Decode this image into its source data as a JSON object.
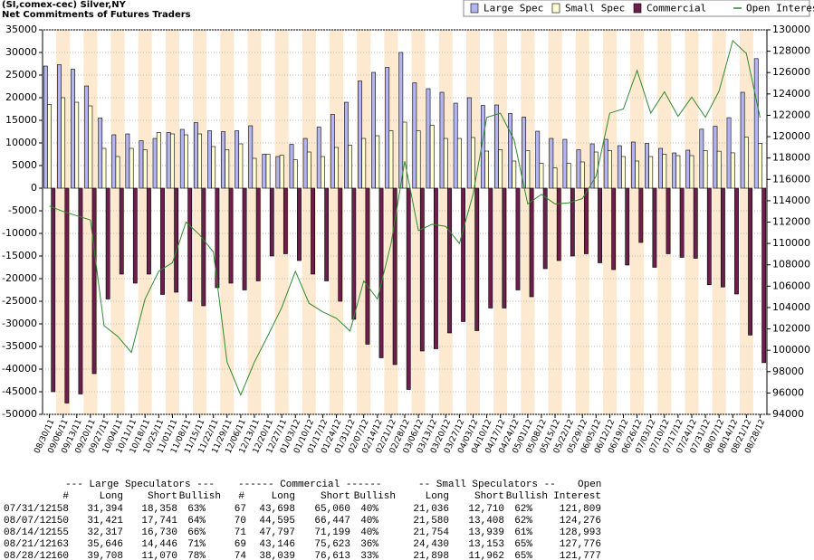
{
  "chart_data": {
    "type": "bar",
    "title": "(SI,comex-cec) Silver,NY",
    "subtitle": "Net Commitments of Futures Traders",
    "categories": [
      "08/30/11",
      "09/06/11",
      "09/13/11",
      "09/20/11",
      "09/27/11",
      "10/04/11",
      "10/11/11",
      "10/18/11",
      "10/25/11",
      "11/01/11",
      "11/08/11",
      "11/15/11",
      "11/22/11",
      "11/29/11",
      "12/06/11",
      "12/13/11",
      "12/20/11",
      "12/27/11",
      "01/03/12",
      "01/10/12",
      "01/17/12",
      "01/24/12",
      "01/31/12",
      "02/07/12",
      "02/14/12",
      "02/21/12",
      "02/28/12",
      "03/06/12",
      "03/13/12",
      "03/20/12",
      "03/27/12",
      "04/03/12",
      "04/10/12",
      "04/17/12",
      "04/24/12",
      "05/01/12",
      "05/08/12",
      "05/15/12",
      "05/22/12",
      "05/29/12",
      "06/05/12",
      "06/12/12",
      "06/19/12",
      "06/26/12",
      "07/03/12",
      "07/10/12",
      "07/17/12",
      "07/24/12",
      "07/31/12",
      "08/07/12",
      "08/14/12",
      "08/21/12",
      "08/28/12"
    ],
    "series": [
      {
        "name": "Large Spec",
        "color": "#b4b4f0",
        "values": [
          27000,
          27300,
          26300,
          22600,
          15500,
          11800,
          12000,
          10500,
          11000,
          12300,
          13000,
          14500,
          12700,
          12500,
          12700,
          13800,
          7500,
          7000,
          9700,
          11000,
          13500,
          16300,
          19000,
          23700,
          25600,
          26700,
          30000,
          23300,
          22000,
          21200,
          18800,
          20000,
          18300,
          18400,
          16500,
          15700,
          12600,
          11000,
          10800,
          8500,
          9800,
          10800,
          9400,
          10200,
          9900,
          8800,
          7800,
          8400,
          13036,
          13680,
          15587,
          21200,
          28638
        ]
      },
      {
        "name": "Small Spec",
        "color": "#ffffd2",
        "values": [
          18500,
          20000,
          19000,
          18200,
          8800,
          7000,
          8800,
          8500,
          12300,
          12000,
          11800,
          12000,
          9200,
          8500,
          9800,
          6600,
          7500,
          7300,
          6300,
          8000,
          7000,
          9000,
          9500,
          11000,
          11600,
          12700,
          14600,
          12700,
          13900,
          11000,
          11000,
          11200,
          8200,
          8500,
          6000,
          8300,
          5500,
          4500,
          5500,
          5800,
          8000,
          8300,
          7000,
          6000,
          7000,
          7500,
          7200,
          7200,
          8326,
          8172,
          7815,
          11277,
          9936
        ]
      },
      {
        "name": "Commercial",
        "color": "#6b1f4a",
        "values": [
          -45000,
          -47500,
          -45500,
          -41000,
          -24500,
          -19000,
          -21000,
          -19000,
          -23500,
          -23000,
          -25000,
          -26000,
          -22000,
          -21000,
          -22500,
          -20500,
          -15000,
          -14500,
          -16000,
          -19000,
          -20500,
          -25000,
          -29000,
          -34500,
          -37500,
          -39000,
          -44500,
          -36000,
          -35500,
          -32000,
          -29500,
          -31500,
          -26500,
          -26500,
          -22500,
          -24000,
          -17800,
          -16000,
          -15000,
          -14500,
          -16500,
          -18000,
          -17000,
          -12000,
          -17500,
          -14500,
          -15300,
          -15500,
          -21362,
          -21852,
          -23402,
          -32477,
          -38574
        ]
      },
      {
        "name": "Open Interest",
        "color": "#2e8b2e",
        "type": "line",
        "axis": "y2",
        "values": [
          113500,
          113000,
          112600,
          112200,
          102300,
          101300,
          99800,
          104800,
          107400,
          108200,
          112000,
          110800,
          109200,
          98900,
          95800,
          98900,
          101400,
          104000,
          107400,
          104400,
          103600,
          103000,
          101800,
          106500,
          104800,
          110000,
          117700,
          111200,
          111800,
          111600,
          110000,
          114600,
          121800,
          122200,
          119700,
          113700,
          114600,
          113700,
          113800,
          114200,
          116300,
          122200,
          122600,
          126200,
          122200,
          124200,
          121900,
          123700,
          121809,
          124276,
          128993,
          127776,
          121777
        ]
      }
    ],
    "ylim": [
      -50000,
      35000
    ],
    "yticks": [
      35000,
      30000,
      25000,
      20000,
      15000,
      10000,
      5000,
      0,
      -5000,
      -10000,
      -15000,
      -20000,
      -25000,
      -30000,
      -35000,
      -40000,
      -45000,
      -50000
    ],
    "y2lim": [
      94000,
      130000
    ],
    "y2ticks": [
      130000,
      128000,
      126000,
      124000,
      122000,
      120000,
      118000,
      116000,
      114000,
      112000,
      110000,
      108000,
      106000,
      104000,
      102000,
      100000,
      98000,
      96000,
      94000
    ],
    "legend": "top-right"
  },
  "table": {
    "group_headers": [
      "--- Large Speculators ---",
      "------ Commercial ------",
      "-- Small Speculators --",
      "Open"
    ],
    "columns": [
      "#",
      "Long",
      "Short",
      "Bullish",
      "#",
      "Long",
      "Short",
      "Bullish",
      "Long",
      "Short",
      "Bullish",
      "Interest"
    ],
    "rows": [
      [
        "07/31/12",
        "158",
        "31,394",
        "18,358",
        "63%",
        "67",
        "43,698",
        "65,060",
        "40%",
        "21,036",
        "12,710",
        "62%",
        "121,809"
      ],
      [
        "08/07/12",
        "150",
        "31,421",
        "17,741",
        "64%",
        "70",
        "44,595",
        "66,447",
        "40%",
        "21,580",
        "13,408",
        "62%",
        "124,276"
      ],
      [
        "08/14/12",
        "155",
        "32,317",
        "16,730",
        "66%",
        "71",
        "47,797",
        "71,199",
        "40%",
        "21,754",
        "13,939",
        "61%",
        "128,993"
      ],
      [
        "08/21/12",
        "163",
        "35,646",
        "14,446",
        "71%",
        "69",
        "43,146",
        "75,623",
        "36%",
        "24,430",
        "13,153",
        "65%",
        "127,776"
      ],
      [
        "08/28/12",
        "160",
        "39,708",
        "11,070",
        "78%",
        "74",
        "38,039",
        "76,613",
        "33%",
        "21,898",
        "11,962",
        "65%",
        "121,777"
      ]
    ]
  }
}
